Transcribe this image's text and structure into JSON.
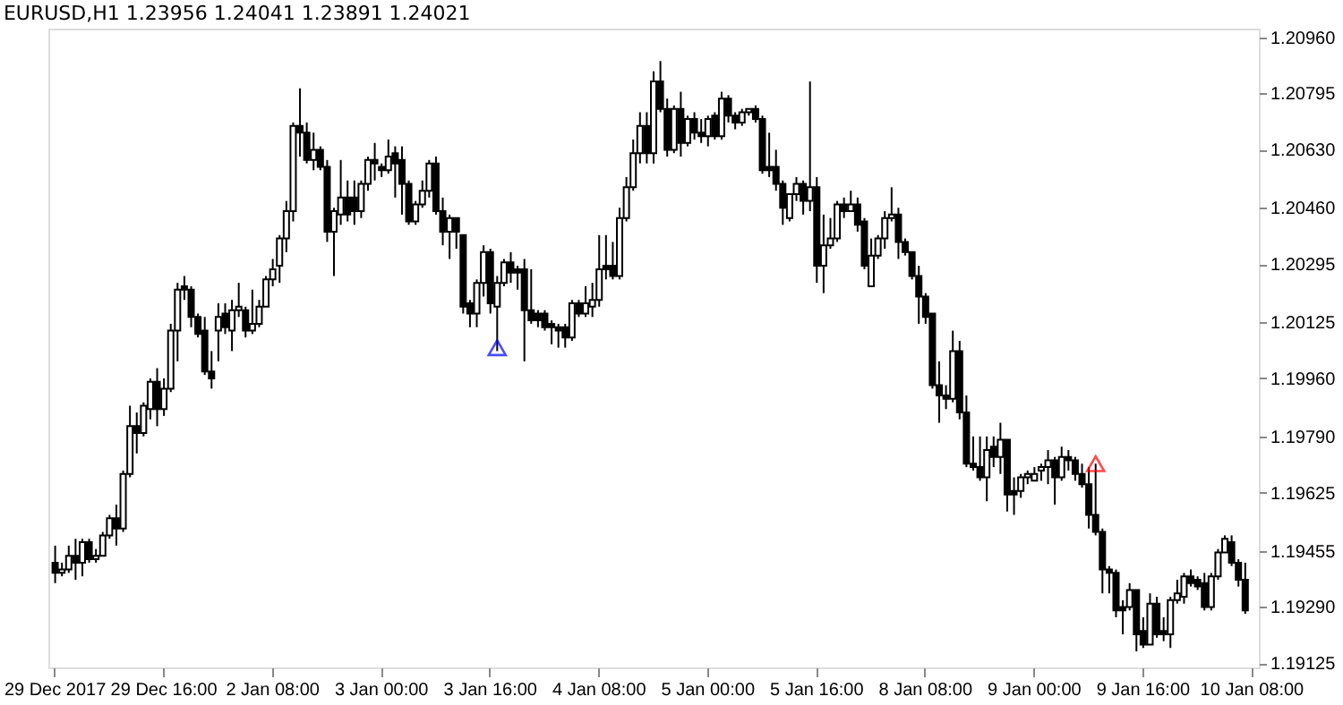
{
  "chart_data": {
    "type": "candlestick",
    "title": "EURUSD,H1  1.23956 1.24041 1.23891 1.24021",
    "categories": [
      "29 Dec 2017",
      null,
      null,
      null,
      null,
      null,
      null,
      null,
      null,
      null,
      null,
      null,
      null,
      null,
      null,
      null,
      "29 Dec 16:00",
      null,
      null,
      null,
      null,
      null,
      null,
      null,
      null,
      null,
      null,
      null,
      null,
      null,
      null,
      null,
      "2 Jan 08:00",
      null,
      null,
      null,
      null,
      null,
      null,
      null,
      null,
      null,
      null,
      null,
      null,
      null,
      null,
      null,
      "3 Jan 00:00",
      null,
      null,
      null,
      null,
      null,
      null,
      null,
      null,
      null,
      null,
      null,
      null,
      null,
      null,
      null,
      "3 Jan 16:00",
      null,
      null,
      null,
      null,
      null,
      null,
      null,
      null,
      null,
      null,
      null,
      null,
      null,
      null,
      null,
      "4 Jan 08:00",
      null,
      null,
      null,
      null,
      null,
      null,
      null,
      null,
      null,
      null,
      null,
      null,
      null,
      null,
      null,
      "5 Jan 00:00",
      null,
      null,
      null,
      null,
      null,
      null,
      null,
      null,
      null,
      null,
      null,
      null,
      null,
      null,
      null,
      "5 Jan 16:00",
      null,
      null,
      null,
      null,
      null,
      null,
      null,
      null,
      null,
      null,
      null,
      null,
      null,
      null,
      null,
      "8 Jan 08:00",
      null,
      null,
      null,
      null,
      null,
      null,
      null,
      null,
      null,
      null,
      null,
      null,
      null,
      null,
      null,
      "9 Jan 00:00",
      null,
      null,
      null,
      null,
      null,
      null,
      null,
      null,
      null,
      null,
      null,
      null,
      null,
      null,
      null,
      "9 Jan 16:00",
      null,
      null,
      null,
      null,
      null,
      null,
      null,
      null,
      null,
      null,
      null,
      null,
      null,
      null,
      null,
      "10 Jan 08:00"
    ],
    "ohlc": [
      [
        1.1942,
        1.1947,
        1.1936,
        1.1939
      ],
      [
        1.1939,
        1.1942,
        1.1938,
        1.194
      ],
      [
        1.194,
        1.1947,
        1.1939,
        1.1944
      ],
      [
        1.1944,
        1.1949,
        1.1937,
        1.1942
      ],
      [
        1.1942,
        1.1949,
        1.1938,
        1.1948
      ],
      [
        1.1948,
        1.1949,
        1.1942,
        1.1943
      ],
      [
        1.1943,
        1.1946,
        1.1942,
        1.1944
      ],
      [
        1.1944,
        1.1951,
        1.1944,
        1.195
      ],
      [
        1.195,
        1.1956,
        1.1949,
        1.1955
      ],
      [
        1.1955,
        1.1959,
        1.1947,
        1.1952
      ],
      [
        1.1952,
        1.1969,
        1.1951,
        1.1968
      ],
      [
        1.1968,
        1.1988,
        1.1967,
        1.1982
      ],
      [
        1.1982,
        1.1986,
        1.1974,
        1.198
      ],
      [
        1.198,
        1.1989,
        1.1979,
        1.1988
      ],
      [
        1.1987,
        1.1996,
        1.1984,
        1.1995
      ],
      [
        1.1995,
        1.1999,
        1.1982,
        1.1987
      ],
      [
        1.1987,
        1.1996,
        1.1985,
        1.1993
      ],
      [
        1.1993,
        1.2012,
        1.1992,
        1.201
      ],
      [
        1.201,
        1.2024,
        1.2001,
        1.2022
      ],
      [
        1.2023,
        1.2026,
        1.2019,
        1.2022
      ],
      [
        1.2022,
        1.2023,
        1.2011,
        1.2014
      ],
      [
        1.2014,
        1.2015,
        1.2008,
        1.2009
      ],
      [
        1.201,
        1.2014,
        1.1997,
        1.1998
      ],
      [
        1.1998,
        1.2004,
        1.1993,
        1.1996
      ],
      [
        1.201,
        1.2018,
        1.2001,
        1.2014
      ],
      [
        1.2015,
        1.2018,
        1.2009,
        1.2011
      ],
      [
        1.201,
        1.2019,
        1.2004,
        1.2016
      ],
      [
        1.2016,
        1.2024,
        1.2014,
        1.2017
      ],
      [
        1.2016,
        1.2017,
        1.2008,
        1.201
      ],
      [
        1.201,
        1.2022,
        1.2009,
        1.2012
      ],
      [
        1.2012,
        1.2019,
        1.2011,
        1.2017
      ],
      [
        1.2017,
        1.2026,
        1.2017,
        1.2025
      ],
      [
        1.2025,
        1.2031,
        1.2023,
        1.2028
      ],
      [
        1.2029,
        1.2038,
        1.2024,
        1.2037
      ],
      [
        1.2037,
        1.2048,
        1.2033,
        1.2045
      ],
      [
        1.2045,
        1.2071,
        1.2042,
        1.207
      ],
      [
        1.207,
        1.2081,
        1.2061,
        1.2068
      ],
      [
        1.2068,
        1.2071,
        1.2059,
        1.206
      ],
      [
        1.206,
        1.2068,
        1.2057,
        1.2063
      ],
      [
        1.2063,
        1.2064,
        1.2057,
        1.2058
      ],
      [
        1.2058,
        1.206,
        1.2036,
        1.2039
      ],
      [
        1.2039,
        1.2046,
        1.2026,
        1.2045
      ],
      [
        1.2044,
        1.206,
        1.2041,
        1.2049
      ],
      [
        1.2049,
        1.2054,
        1.2042,
        1.2044
      ],
      [
        1.2049,
        1.2054,
        1.2041,
        1.2045
      ],
      [
        1.2045,
        1.2054,
        1.2043,
        1.2053
      ],
      [
        1.2053,
        1.2061,
        1.2051,
        1.206
      ],
      [
        1.206,
        1.2065,
        1.2054,
        1.2059
      ],
      [
        1.2058,
        1.2059,
        1.2055,
        1.2057
      ],
      [
        1.2057,
        1.2066,
        1.2056,
        1.2061
      ],
      [
        1.2062,
        1.2064,
        1.2049,
        1.2059
      ],
      [
        1.206,
        1.2064,
        1.2044,
        1.2053
      ],
      [
        1.2053,
        1.2054,
        1.2041,
        1.2042
      ],
      [
        1.2042,
        1.2048,
        1.2041,
        1.2047
      ],
      [
        1.2047,
        1.2054,
        1.2046,
        1.2051
      ],
      [
        1.2051,
        1.206,
        1.2049,
        1.2059
      ],
      [
        1.2059,
        1.2061,
        1.2044,
        1.2045
      ],
      [
        1.2045,
        1.2049,
        1.2035,
        1.2039
      ],
      [
        1.2039,
        1.2044,
        1.2031,
        1.2043
      ],
      [
        1.2043,
        1.2043,
        1.2034,
        1.2039
      ],
      [
        1.2038,
        1.2038,
        1.2015,
        1.2017
      ],
      [
        1.2018,
        1.2019,
        1.2011,
        1.2015
      ],
      [
        1.2015,
        1.2025,
        1.2011,
        1.2024
      ],
      [
        1.2024,
        1.2035,
        1.202,
        1.2033
      ],
      [
        1.2033,
        1.2034,
        1.2015,
        1.2018
      ],
      [
        1.2017,
        1.2026,
        1.2004,
        1.2024
      ],
      [
        1.2024,
        1.2031,
        1.2023,
        1.203
      ],
      [
        1.203,
        1.2033,
        1.2024,
        1.2027
      ],
      [
        1.2028,
        1.2029,
        1.2022,
        1.2027
      ],
      [
        1.2028,
        1.2031,
        1.2001,
        1.2016
      ],
      [
        1.2016,
        1.2028,
        1.2012,
        1.2013
      ],
      [
        1.2015,
        1.2016,
        1.2011,
        1.2013
      ],
      [
        1.2015,
        1.2016,
        1.201,
        1.2011
      ],
      [
        1.2012,
        1.2013,
        1.2006,
        1.2011
      ],
      [
        1.2011,
        1.2012,
        1.2005,
        1.201
      ],
      [
        1.2011,
        1.2012,
        1.2005,
        1.2008
      ],
      [
        1.2008,
        1.2019,
        1.2007,
        1.2018
      ],
      [
        1.2018,
        1.2019,
        1.2014,
        1.2015
      ],
      [
        1.2015,
        1.2023,
        1.2014,
        1.2018
      ],
      [
        1.2017,
        1.2024,
        1.2014,
        1.2019
      ],
      [
        1.2019,
        1.2038,
        1.2017,
        1.2028
      ],
      [
        1.2029,
        1.2038,
        1.2025,
        1.2028
      ],
      [
        1.2029,
        1.2036,
        1.2025,
        1.2026
      ],
      [
        1.2026,
        1.2046,
        1.2025,
        1.2043
      ],
      [
        1.2043,
        1.2055,
        1.2042,
        1.2052
      ],
      [
        1.2052,
        1.2066,
        1.2051,
        1.2062
      ],
      [
        1.2062,
        1.2074,
        1.2059,
        1.207
      ],
      [
        1.207,
        1.2074,
        1.2059,
        1.2062
      ],
      [
        1.2062,
        1.2086,
        1.2059,
        1.2083
      ],
      [
        1.2083,
        1.2089,
        1.2074,
        1.2075
      ],
      [
        1.2075,
        1.2078,
        1.2061,
        1.2063
      ],
      [
        1.2063,
        1.2076,
        1.2062,
        1.2075
      ],
      [
        1.2075,
        1.208,
        1.2061,
        1.2065
      ],
      [
        1.2065,
        1.2073,
        1.2064,
        1.2072
      ],
      [
        1.2072,
        1.2074,
        1.2066,
        1.2068
      ],
      [
        1.2068,
        1.2072,
        1.2065,
        1.2067
      ],
      [
        1.2067,
        1.2073,
        1.2064,
        1.2072
      ],
      [
        1.2073,
        1.2074,
        1.2066,
        1.2067
      ],
      [
        1.2067,
        1.208,
        1.2066,
        1.2078
      ],
      [
        1.2078,
        1.2079,
        1.2071,
        1.2073
      ],
      [
        1.2073,
        1.2074,
        1.2069,
        1.2071
      ],
      [
        1.2071,
        1.2075,
        1.207,
        1.2074
      ],
      [
        1.2074,
        1.2075,
        1.2073,
        1.2075
      ],
      [
        1.2075,
        1.2076,
        1.2071,
        1.2072
      ],
      [
        1.2072,
        1.2073,
        1.2056,
        1.2057
      ],
      [
        1.2058,
        1.2068,
        1.2055,
        1.2057
      ],
      [
        1.2058,
        1.2063,
        1.2051,
        1.2053
      ],
      [
        1.2053,
        1.2054,
        1.2041,
        1.2046
      ],
      [
        1.2043,
        1.205,
        1.2042,
        1.205
      ],
      [
        1.205,
        1.2055,
        1.2048,
        1.2053
      ],
      [
        1.2053,
        1.2054,
        1.2044,
        1.2048
      ],
      [
        1.2048,
        1.2083,
        1.2045,
        1.2052
      ],
      [
        1.2052,
        1.2055,
        1.2024,
        1.2029
      ],
      [
        1.2029,
        1.2044,
        1.2021,
        1.2035
      ],
      [
        1.2035,
        1.2043,
        1.2034,
        1.2037
      ],
      [
        1.2037,
        1.2048,
        1.2036,
        1.2047
      ],
      [
        1.2047,
        1.2049,
        1.2043,
        1.2045
      ],
      [
        1.2045,
        1.2051,
        1.2045,
        1.2047
      ],
      [
        1.2047,
        1.2049,
        1.2039,
        1.2041
      ],
      [
        1.2042,
        1.2043,
        1.2028,
        1.2029
      ],
      [
        1.2023,
        1.2037,
        1.2023,
        1.2032
      ],
      [
        1.2032,
        1.2038,
        1.2031,
        1.2037
      ],
      [
        1.2037,
        1.2045,
        1.2034,
        1.2043
      ],
      [
        1.2043,
        1.2052,
        1.2042,
        1.2044
      ],
      [
        1.2044,
        1.2046,
        1.2031,
        1.2036
      ],
      [
        1.2036,
        1.2037,
        1.2032,
        1.2033
      ],
      [
        1.2033,
        1.2033,
        1.2025,
        1.2026
      ],
      [
        1.2026,
        1.2029,
        1.2012,
        1.202
      ],
      [
        1.202,
        1.2021,
        1.2012,
        1.2014
      ],
      [
        1.2015,
        1.2015,
        1.1993,
        1.1994
      ],
      [
        1.1994,
        1.2001,
        1.1983,
        1.1991
      ],
      [
        1.1991,
        1.1994,
        1.1987,
        1.199
      ],
      [
        1.199,
        1.201,
        1.1989,
        1.2004
      ],
      [
        1.2004,
        1.2007,
        1.1984,
        1.1986
      ],
      [
        1.1986,
        1.1991,
        1.197,
        1.1971
      ],
      [
        1.1971,
        1.1979,
        1.1969,
        1.197
      ],
      [
        1.197,
        1.1979,
        1.1966,
        1.1967
      ],
      [
        1.1967,
        1.1979,
        1.196,
        1.1975
      ],
      [
        1.1976,
        1.1979,
        1.197,
        1.1973
      ],
      [
        1.1973,
        1.1983,
        1.1968,
        1.1978
      ],
      [
        1.1978,
        1.1978,
        1.1957,
        1.1962
      ],
      [
        1.1963,
        1.1967,
        1.1956,
        1.1962
      ],
      [
        1.1963,
        1.1968,
        1.1961,
        1.1967
      ],
      [
        1.1967,
        1.1969,
        1.1965,
        1.1968
      ],
      [
        1.1966,
        1.197,
        1.1966,
        1.1968
      ],
      [
        1.1969,
        1.1971,
        1.1966,
        1.197
      ],
      [
        1.197,
        1.1975,
        1.1965,
        1.1972
      ],
      [
        1.1972,
        1.1973,
        1.1959,
        1.1967
      ],
      [
        1.1967,
        1.1976,
        1.1966,
        1.1973
      ],
      [
        1.1973,
        1.1975,
        1.1969,
        1.1972
      ],
      [
        1.1972,
        1.1973,
        1.1966,
        1.1968
      ],
      [
        1.1968,
        1.1971,
        1.1964,
        1.1965
      ],
      [
        1.1965,
        1.197,
        1.1952,
        1.1956
      ],
      [
        1.1956,
        1.1971,
        1.195,
        1.1951
      ],
      [
        1.1951,
        1.1952,
        1.1933,
        1.194
      ],
      [
        1.194,
        1.1941,
        1.1933,
        1.1939
      ],
      [
        1.1939,
        1.194,
        1.1926,
        1.1928
      ],
      [
        1.1929,
        1.1931,
        1.1921,
        1.1928
      ],
      [
        1.1929,
        1.1936,
        1.1928,
        1.1934
      ],
      [
        1.1934,
        1.1934,
        1.1916,
        1.1921
      ],
      [
        1.1922,
        1.1926,
        1.1917,
        1.1918
      ],
      [
        1.1918,
        1.1933,
        1.1918,
        1.193
      ],
      [
        1.193,
        1.1932,
        1.192,
        1.1921
      ],
      [
        1.1922,
        1.1926,
        1.1919,
        1.1921
      ],
      [
        1.1921,
        1.1932,
        1.1917,
        1.1931
      ],
      [
        1.1931,
        1.1937,
        1.193,
        1.1933
      ],
      [
        1.1932,
        1.1939,
        1.193,
        1.1938
      ],
      [
        1.1938,
        1.194,
        1.1935,
        1.1936
      ],
      [
        1.1937,
        1.1938,
        1.1934,
        1.1935
      ],
      [
        1.1936,
        1.1939,
        1.1928,
        1.1929
      ],
      [
        1.1929,
        1.1939,
        1.1928,
        1.1938
      ],
      [
        1.1938,
        1.1946,
        1.1937,
        1.1945
      ],
      [
        1.1945,
        1.195,
        1.1945,
        1.1949
      ],
      [
        1.1948,
        1.195,
        1.1941,
        1.1942
      ],
      [
        1.1942,
        1.1943,
        1.1935,
        1.1937
      ],
      [
        1.1937,
        1.1942,
        1.1927,
        1.1928
      ],
      null
    ],
    "series": [
      {
        "type": "scatter",
        "color": "#0000ff",
        "marker": "triangle",
        "values": [
          null,
          null,
          null,
          null,
          null,
          null,
          null,
          null,
          null,
          null,
          null,
          null,
          null,
          null,
          null,
          null,
          null,
          null,
          null,
          null,
          null,
          null,
          null,
          null,
          null,
          null,
          null,
          null,
          null,
          null,
          null,
          null,
          null,
          null,
          null,
          null,
          null,
          null,
          null,
          null,
          null,
          null,
          null,
          null,
          null,
          null,
          null,
          null,
          null,
          null,
          null,
          null,
          null,
          null,
          null,
          null,
          null,
          null,
          null,
          null,
          null,
          null,
          null,
          null,
          null,
          1.2005,
          null,
          null,
          null,
          null,
          null,
          null,
          null,
          null,
          null,
          null,
          null,
          null,
          null,
          null,
          null,
          null,
          null,
          null,
          null,
          null,
          null,
          null,
          null,
          null,
          null,
          null,
          null,
          null,
          null,
          null,
          null,
          null,
          null,
          null,
          null,
          null,
          null,
          null,
          null,
          null,
          null,
          null,
          null,
          null,
          null,
          null,
          null,
          null,
          null,
          null,
          null,
          null,
          null,
          null,
          null,
          null,
          null,
          null,
          null,
          null,
          null,
          null,
          null,
          null,
          null,
          null,
          null,
          null,
          null,
          null,
          null,
          null,
          null,
          null,
          null,
          null,
          null,
          null,
          null,
          null,
          null,
          null,
          null,
          null,
          null,
          null,
          null,
          null,
          null,
          null,
          null,
          null,
          null,
          null,
          null,
          null,
          null,
          null,
          null,
          null,
          null,
          null,
          null,
          null,
          null,
          null,
          null,
          null,
          null,
          null,
          null
        ]
      },
      {
        "type": "scatter",
        "color": "#ff0000",
        "marker": "triangle",
        "values": [
          null,
          null,
          null,
          null,
          null,
          null,
          null,
          null,
          null,
          null,
          null,
          null,
          null,
          null,
          null,
          null,
          null,
          null,
          null,
          null,
          null,
          null,
          null,
          null,
          null,
          null,
          null,
          null,
          null,
          null,
          null,
          null,
          null,
          null,
          null,
          null,
          null,
          null,
          null,
          null,
          null,
          null,
          null,
          null,
          null,
          null,
          null,
          null,
          null,
          null,
          null,
          null,
          null,
          null,
          null,
          null,
          null,
          null,
          null,
          null,
          null,
          null,
          null,
          null,
          null,
          null,
          null,
          null,
          null,
          null,
          null,
          null,
          null,
          null,
          null,
          null,
          null,
          null,
          null,
          null,
          null,
          null,
          null,
          null,
          null,
          null,
          null,
          null,
          null,
          null,
          null,
          null,
          null,
          null,
          null,
          null,
          null,
          null,
          null,
          null,
          null,
          null,
          null,
          null,
          null,
          null,
          null,
          null,
          null,
          null,
          null,
          null,
          null,
          null,
          null,
          null,
          null,
          null,
          null,
          null,
          null,
          null,
          null,
          null,
          null,
          null,
          null,
          null,
          null,
          null,
          null,
          null,
          null,
          null,
          null,
          null,
          null,
          null,
          null,
          null,
          null,
          null,
          null,
          null,
          null,
          null,
          null,
          null,
          null,
          null,
          null,
          null,
          null,
          1.1971,
          null,
          null,
          null,
          null,
          null,
          null,
          null,
          null,
          null,
          null,
          null,
          null,
          null,
          null,
          null,
          null,
          null,
          null,
          null,
          null,
          null,
          null,
          null
        ]
      }
    ],
    "ylim": [
      1.19113,
      1.20985
    ],
    "yticks": [
      {
        "value": 1.19125,
        "label": "1.19125"
      },
      {
        "value": 1.1929,
        "label": "1.19290"
      },
      {
        "value": 1.19455,
        "label": "1.19455"
      },
      {
        "value": 1.19625,
        "label": "1.19625"
      },
      {
        "value": 1.1979,
        "label": "1.19790"
      },
      {
        "value": 1.1996,
        "label": "1.19960"
      },
      {
        "value": 1.20125,
        "label": "1.20125"
      },
      {
        "value": 1.20295,
        "label": "1.20295"
      },
      {
        "value": 1.2046,
        "label": "1.20460"
      },
      {
        "value": 1.2063,
        "label": "1.20630"
      },
      {
        "value": 1.20795,
        "label": "1.20795"
      },
      {
        "value": 1.2096,
        "label": "1.20960"
      }
    ],
    "grid": false
  }
}
